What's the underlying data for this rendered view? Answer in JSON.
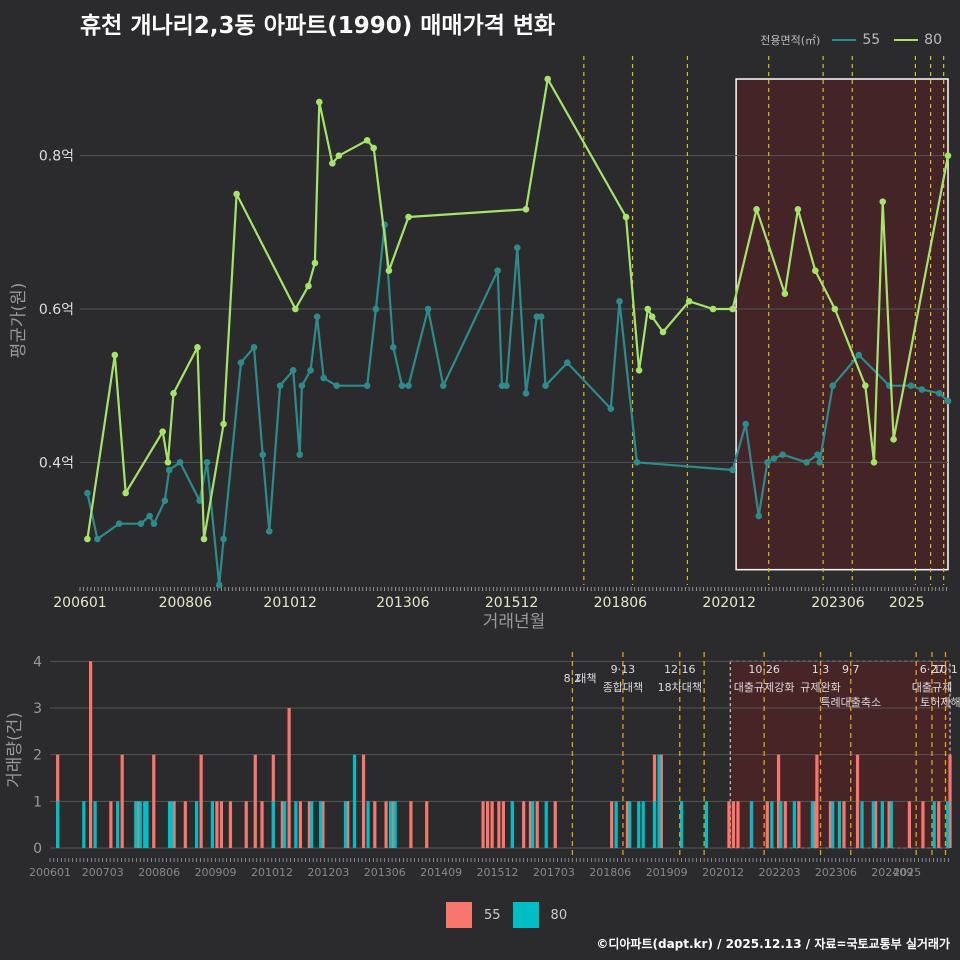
{
  "title": "휴천 개나리2,3동 아파트(1990) 매매가격 변화",
  "legend_top": {
    "label": "전용면적(㎡)",
    "series": [
      {
        "name": "55",
        "color": "#2e8b8c"
      },
      {
        "name": "80",
        "color": "#a6e36b"
      }
    ]
  },
  "legend_bottom": {
    "series": [
      {
        "name": "55",
        "color": "#f8766d"
      },
      {
        "name": "80",
        "color": "#00bfc4"
      }
    ]
  },
  "footer": "©디아파트(dapt.kr) / 2025.12.13 / 자료=국토교통부 실거래가",
  "chart_data": [
    {
      "type": "line",
      "title": "휴천 개나리2,3동 아파트(1990) 매매가격 변화",
      "xlabel": "거래년월",
      "ylabel": "평균가(원)",
      "ylim": [
        0.24,
        0.93
      ],
      "xlim": [
        2006.0,
        2025.95
      ],
      "y_ticks": [
        {
          "v": 0.4,
          "label": "0.4억"
        },
        {
          "v": 0.6,
          "label": "0.6억"
        },
        {
          "v": 0.8,
          "label": "0.8억"
        }
      ],
      "x_ticks": [
        {
          "v": 2006.0,
          "label": "200601"
        },
        {
          "v": 2008.42,
          "label": "200806"
        },
        {
          "v": 2010.83,
          "label": "201012"
        },
        {
          "v": 2013.42,
          "label": "201306"
        },
        {
          "v": 2015.92,
          "label": "201512"
        },
        {
          "v": 2018.42,
          "label": "201806"
        },
        {
          "v": 2020.92,
          "label": "202012"
        },
        {
          "v": 2023.42,
          "label": "202306"
        },
        {
          "v": 2025.0,
          "label": "2025"
        }
      ],
      "highlight_range": [
        2021.08,
        2025.95
      ],
      "policy_lines": [
        2017.58,
        2018.7,
        2019.96,
        2021.83,
        2023.08,
        2023.75,
        2025.2,
        2025.55,
        2025.85
      ],
      "series": [
        {
          "name": "55",
          "x": [
            2006.17,
            2006.4,
            2006.9,
            2007.4,
            2007.6,
            2007.7,
            2007.95,
            2008.05,
            2008.3,
            2008.75,
            2008.92,
            2009.2,
            2009.3,
            2009.7,
            2010.0,
            2010.2,
            2010.35,
            2010.6,
            2010.9,
            2011.05,
            2011.1,
            2011.3,
            2011.45,
            2011.6,
            2011.9,
            2012.6,
            2012.8,
            2013.0,
            2013.2,
            2013.4,
            2013.55,
            2014.0,
            2014.35,
            2015.6,
            2015.7,
            2015.8,
            2016.05,
            2016.25,
            2016.5,
            2016.6,
            2016.7,
            2017.2,
            2018.2,
            2018.4,
            2018.8,
            2021.0,
            2021.3,
            2021.6,
            2021.8,
            2021.95,
            2022.15,
            2022.7,
            2022.95,
            2023.0,
            2023.3,
            2023.9,
            2024.6,
            2025.1,
            2025.35,
            2025.75,
            2025.95
          ],
          "y": [
            0.36,
            0.3,
            0.32,
            0.32,
            0.33,
            0.32,
            0.35,
            0.39,
            0.4,
            0.35,
            0.4,
            0.24,
            0.3,
            0.53,
            0.55,
            0.41,
            0.31,
            0.5,
            0.52,
            0.41,
            0.5,
            0.52,
            0.59,
            0.51,
            0.5,
            0.5,
            0.6,
            0.71,
            0.55,
            0.5,
            0.5,
            0.6,
            0.5,
            0.65,
            0.5,
            0.5,
            0.68,
            0.49,
            0.59,
            0.59,
            0.5,
            0.53,
            0.47,
            0.61,
            0.4,
            0.39,
            0.45,
            0.33,
            0.4,
            0.405,
            0.41,
            0.4,
            0.41,
            0.4,
            0.5,
            0.54,
            0.5,
            0.5,
            0.495,
            0.49,
            0.48
          ]
        },
        {
          "name": "80",
          "x": [
            2006.17,
            2006.8,
            2007.05,
            2007.9,
            2008.02,
            2008.15,
            2008.7,
            2008.85,
            2009.3,
            2009.6,
            2010.95,
            2011.25,
            2011.4,
            2011.5,
            2011.8,
            2011.95,
            2012.6,
            2012.75,
            2013.1,
            2013.55,
            2016.25,
            2016.75,
            2018.55,
            2018.85,
            2019.05,
            2019.15,
            2019.4,
            2020.0,
            2020.55,
            2021.0,
            2021.55,
            2022.2,
            2022.5,
            2022.9,
            2023.35,
            2024.05,
            2024.25,
            2024.45,
            2024.7,
            2025.95
          ],
          "y": [
            0.3,
            0.54,
            0.36,
            0.44,
            0.4,
            0.49,
            0.55,
            0.3,
            0.45,
            0.75,
            0.6,
            0.63,
            0.66,
            0.87,
            0.79,
            0.8,
            0.82,
            0.81,
            0.65,
            0.72,
            0.73,
            0.9,
            0.72,
            0.52,
            0.6,
            0.59,
            0.57,
            0.61,
            0.6,
            0.6,
            0.73,
            0.62,
            0.73,
            0.65,
            0.6,
            0.5,
            0.4,
            0.74,
            0.43,
            0.8
          ]
        }
      ]
    },
    {
      "type": "bar",
      "xlabel": "거래년월",
      "ylabel": "거래량(건)",
      "ylim": [
        0,
        4.2
      ],
      "y_ticks": [
        0,
        1,
        2,
        3,
        4
      ],
      "x_ticks": [
        {
          "v": 2006.0,
          "label": "200601"
        },
        {
          "v": 2007.17,
          "label": "200703"
        },
        {
          "v": 2008.42,
          "label": "200806"
        },
        {
          "v": 2009.67,
          "label": "200909"
        },
        {
          "v": 2010.92,
          "label": "201012"
        },
        {
          "v": 2012.17,
          "label": "201203"
        },
        {
          "v": 2013.42,
          "label": "201306"
        },
        {
          "v": 2014.67,
          "label": "201409"
        },
        {
          "v": 2015.92,
          "label": "201512"
        },
        {
          "v": 2017.17,
          "label": "201703"
        },
        {
          "v": 2018.42,
          "label": "201806"
        },
        {
          "v": 2019.67,
          "label": "201909"
        },
        {
          "v": 2020.92,
          "label": "202012"
        },
        {
          "v": 2022.17,
          "label": "202203"
        },
        {
          "v": 2023.42,
          "label": "202306"
        },
        {
          "v": 2024.67,
          "label": "202409"
        },
        {
          "v": 2025.0,
          "label": "2025"
        }
      ],
      "highlight_range": [
        2021.08,
        2025.95
      ],
      "policy_events": [
        {
          "x": 2017.58,
          "date": "8·2",
          "label": "대책"
        },
        {
          "x": 2018.7,
          "date": "9·13",
          "label": "종합대책"
        },
        {
          "x": 2019.96,
          "date": "12·16",
          "label": "18차대책"
        },
        {
          "x": 2020.5,
          "date": "",
          "label": ""
        },
        {
          "x": 2021.83,
          "date": "10·26",
          "label": "대출규제강화"
        },
        {
          "x": 2023.08,
          "date": "1·3",
          "label": "규제완화"
        },
        {
          "x": 2023.75,
          "date": "9·7",
          "label": "특례대출축소"
        },
        {
          "x": 2025.2,
          "date": "",
          "label": ""
        },
        {
          "x": 2025.55,
          "date": "6·27",
          "label": "대출규제"
        },
        {
          "x": 2025.85,
          "date": "10·1",
          "label": "토허제해제"
        }
      ],
      "series": [
        {
          "name": "55",
          "x": [
            2006.17,
            2006.9,
            2007.35,
            2007.6,
            2007.95,
            2008.3,
            2008.75,
            2009.0,
            2009.35,
            2009.7,
            2009.8,
            2010.0,
            2010.35,
            2010.55,
            2010.7,
            2010.95,
            2011.15,
            2011.3,
            2011.55,
            2011.75,
            2012.05,
            2012.6,
            2012.95,
            2013.2,
            2013.45,
            2013.6,
            2014.0,
            2014.35,
            2015.6,
            2015.7,
            2015.8,
            2015.95,
            2016.05,
            2016.25,
            2016.5,
            2016.65,
            2016.8,
            2017.2,
            2018.45,
            2018.8,
            2019.4,
            2019.55,
            2021.05,
            2021.15,
            2021.25,
            2021.55,
            2021.9,
            2022.15,
            2022.3,
            2022.6,
            2022.95,
            2023.0,
            2023.3,
            2023.6,
            2023.9,
            2024.3,
            2024.6,
            2025.05,
            2025.35,
            2025.7,
            2025.95
          ],
          "y": [
            2,
            4,
            1,
            2,
            1,
            2,
            1,
            1,
            2,
            1,
            1,
            1,
            1,
            2,
            1,
            2,
            1,
            3,
            1,
            1,
            1,
            1,
            2,
            1,
            1,
            1,
            1,
            1,
            1,
            1,
            1,
            1,
            1,
            1,
            1,
            1,
            1,
            1,
            1,
            1,
            2,
            2,
            1,
            1,
            1,
            1,
            1,
            2,
            1,
            1,
            1,
            2,
            1,
            1,
            2,
            1,
            1,
            1,
            1,
            1,
            2
          ]
        },
        {
          "name": "80",
          "x": [
            2006.17,
            2006.75,
            2007.0,
            2007.5,
            2007.9,
            2008.0,
            2008.1,
            2008.15,
            2008.65,
            2008.7,
            2009.25,
            2009.6,
            2010.95,
            2011.2,
            2011.45,
            2011.8,
            2012.0,
            2012.55,
            2012.75,
            2013.05,
            2013.55,
            2013.65,
            2016.25,
            2016.7,
            2017.0,
            2018.55,
            2018.85,
            2019.05,
            2019.15,
            2019.4,
            2019.5,
            2020.0,
            2020.55,
            2021.55,
            2022.0,
            2022.2,
            2022.5,
            2022.9,
            2023.35,
            2023.5,
            2024.0,
            2024.25,
            2024.45,
            2024.65,
            2025.6,
            2025.9
          ],
          "y": [
            1,
            1,
            1,
            1,
            1,
            1,
            1,
            1,
            1,
            1,
            1,
            1,
            1,
            1,
            1,
            1,
            1,
            1,
            2,
            1,
            1,
            1,
            1,
            1,
            1,
            1,
            1,
            1,
            1,
            1,
            2,
            1,
            1,
            1,
            1,
            1,
            1,
            1,
            1,
            1,
            1,
            1,
            1,
            1,
            1,
            1
          ]
        }
      ]
    }
  ]
}
